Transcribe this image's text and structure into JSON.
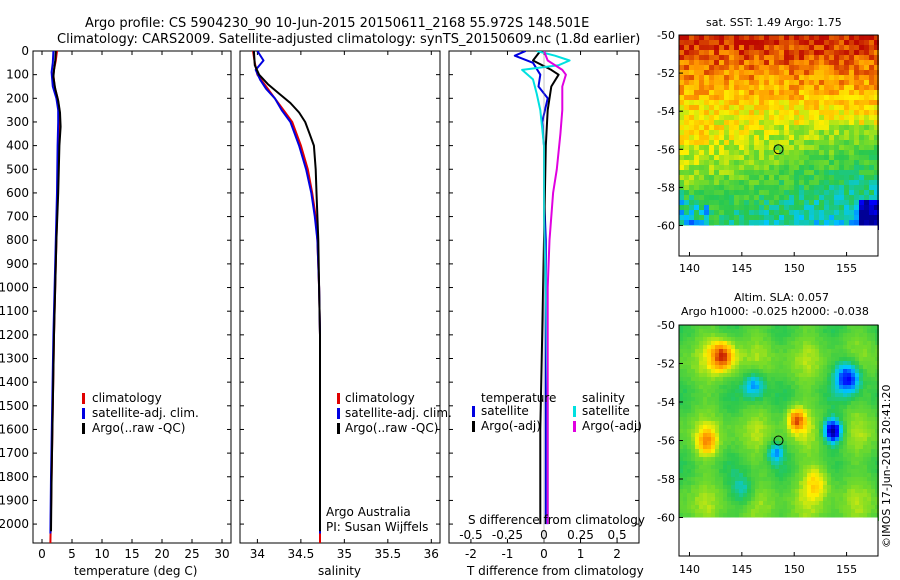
{
  "header": {
    "line1": "Argo profile: CS 5904230_90 10-Jun-2015 20150611_2168 55.972S 148.501E",
    "line2": "Climatology: CARS2009. Satellite-adjusted climatology: synTS_20150609.nc (1.8d earlier)"
  },
  "colors": {
    "climatology": "#e00000",
    "satellite_adj": "#0000e0",
    "argo": "#000000",
    "satellite_s": "#00e0e0",
    "argo_s": "#e000e0"
  },
  "chart_data": [
    {
      "type": "line",
      "name": "temperature",
      "xlabel": "temperature (deg C)",
      "ylabel": "",
      "xlim": [
        -1.5,
        31.5
      ],
      "ylim": [
        2080,
        0
      ],
      "xticks": [
        0,
        5,
        10,
        15,
        20,
        25,
        30
      ],
      "yticks": [
        0,
        100,
        200,
        300,
        400,
        500,
        600,
        700,
        800,
        900,
        1000,
        1100,
        1200,
        1300,
        1400,
        1500,
        1600,
        1700,
        1800,
        1900,
        2000
      ],
      "legend": [
        "climatology",
        "satellite-adj. clim.",
        "Argo(..raw -QC)"
      ],
      "series": [
        {
          "name": "climatology",
          "color": "#e00000",
          "points": [
            [
              2.5,
              0
            ],
            [
              2.3,
              40
            ],
            [
              2.0,
              80
            ],
            [
              1.9,
              100
            ],
            [
              2.1,
              150
            ],
            [
              2.6,
              200
            ],
            [
              2.9,
              250
            ],
            [
              2.9,
              300
            ],
            [
              2.8,
              400
            ],
            [
              2.6,
              600
            ],
            [
              2.4,
              800
            ],
            [
              2.2,
              1000
            ],
            [
              2.0,
              1200
            ],
            [
              1.8,
              1500
            ],
            [
              1.6,
              1800
            ],
            [
              1.4,
              2080
            ]
          ]
        },
        {
          "name": "satellite-adj. clim.",
          "color": "#0000e0",
          "points": [
            [
              1.9,
              0
            ],
            [
              1.8,
              50
            ],
            [
              1.6,
              90
            ],
            [
              1.8,
              150
            ],
            [
              2.4,
              200
            ],
            [
              2.7,
              250
            ],
            [
              2.7,
              300
            ],
            [
              2.6,
              400
            ],
            [
              2.5,
              600
            ],
            [
              2.3,
              800
            ],
            [
              2.1,
              1000
            ],
            [
              1.9,
              1200
            ],
            [
              1.7,
              1500
            ],
            [
              1.5,
              1800
            ],
            [
              1.4,
              2040
            ]
          ]
        },
        {
          "name": "Argo(..raw -QC)",
          "color": "#000000",
          "points": [
            [
              2.3,
              0
            ],
            [
              2.2,
              40
            ],
            [
              2.0,
              80
            ],
            [
              1.9,
              110
            ],
            [
              2.2,
              160
            ],
            [
              2.7,
              210
            ],
            [
              3.0,
              260
            ],
            [
              3.1,
              320
            ],
            [
              2.9,
              400
            ],
            [
              2.7,
              600
            ],
            [
              2.4,
              800
            ],
            [
              2.2,
              1000
            ],
            [
              2.0,
              1200
            ],
            [
              1.8,
              1500
            ],
            [
              1.6,
              1800
            ],
            [
              1.5,
              2030
            ]
          ]
        }
      ]
    },
    {
      "type": "line",
      "name": "salinity",
      "xlabel": "salinity",
      "ylabel": "",
      "xlim": [
        33.8,
        36.1
      ],
      "ylim": [
        2080,
        0
      ],
      "xticks": [
        34,
        34.5,
        35,
        35.5,
        36
      ],
      "legend": [
        "climatology",
        "satellite-adj. clim.",
        "Argo(..raw -QC)"
      ],
      "annotation": [
        "Argo Australia",
        "PI: Susan Wijffels"
      ],
      "series": [
        {
          "name": "climatology",
          "color": "#e00000",
          "points": [
            [
              33.95,
              0
            ],
            [
              33.97,
              50
            ],
            [
              34.0,
              100
            ],
            [
              34.1,
              150
            ],
            [
              34.2,
              200
            ],
            [
              34.3,
              250
            ],
            [
              34.4,
              300
            ],
            [
              34.5,
              400
            ],
            [
              34.58,
              500
            ],
            [
              34.63,
              600
            ],
            [
              34.67,
              700
            ],
            [
              34.69,
              800
            ],
            [
              34.71,
              1000
            ],
            [
              34.72,
              1200
            ],
            [
              34.72,
              1500
            ],
            [
              34.72,
              1800
            ],
            [
              34.72,
              2080
            ]
          ]
        },
        {
          "name": "satellite-adj. clim.",
          "color": "#0000e0",
          "points": [
            [
              34.0,
              0
            ],
            [
              34.07,
              40
            ],
            [
              33.98,
              80
            ],
            [
              34.03,
              120
            ],
            [
              34.1,
              160
            ],
            [
              34.2,
              200
            ],
            [
              34.28,
              250
            ],
            [
              34.38,
              300
            ],
            [
              34.48,
              400
            ],
            [
              34.56,
              500
            ],
            [
              34.62,
              600
            ],
            [
              34.66,
              700
            ],
            [
              34.69,
              800
            ],
            [
              34.71,
              1000
            ],
            [
              34.72,
              1200
            ],
            [
              34.72,
              1500
            ],
            [
              34.72,
              1800
            ],
            [
              34.72,
              2040
            ]
          ]
        },
        {
          "name": "Argo(..raw -QC)",
          "color": "#000000",
          "points": [
            [
              33.96,
              0
            ],
            [
              33.97,
              60
            ],
            [
              34.02,
              100
            ],
            [
              34.12,
              140
            ],
            [
              34.25,
              180
            ],
            [
              34.38,
              220
            ],
            [
              34.48,
              260
            ],
            [
              34.55,
              300
            ],
            [
              34.6,
              350
            ],
            [
              34.65,
              400
            ],
            [
              34.67,
              500
            ],
            [
              34.68,
              600
            ],
            [
              34.69,
              700
            ],
            [
              34.7,
              800
            ],
            [
              34.71,
              1000
            ],
            [
              34.72,
              1200
            ],
            [
              34.72,
              1500
            ],
            [
              34.72,
              1800
            ],
            [
              34.72,
              2030
            ]
          ]
        }
      ]
    },
    {
      "type": "line",
      "name": "differences",
      "xlabel": "T difference from climatology",
      "x2label": "S difference from climatology",
      "xlim": [
        -2.6,
        2.6
      ],
      "ylim": [
        2080,
        0
      ],
      "xticks": [
        -2,
        -1,
        0,
        1,
        2
      ],
      "x2ticks": [
        -0.5,
        -0.25,
        0,
        0.25,
        0.5
      ],
      "legend_groups": [
        {
          "title": "temperature",
          "entries": [
            "satellite",
            "Argo(-adj)"
          ]
        },
        {
          "title": "salinity",
          "entries": [
            "satellite",
            "Argo(-adj)"
          ]
        }
      ],
      "series": [
        {
          "name": "temperature satellite",
          "color": "#0000e0",
          "points": [
            [
              -0.5,
              0
            ],
            [
              -0.8,
              20
            ],
            [
              -0.3,
              50
            ],
            [
              -0.1,
              100
            ],
            [
              -0.15,
              150
            ],
            [
              0.1,
              200
            ],
            [
              -0.05,
              300
            ],
            [
              0.0,
              400
            ],
            [
              0.0,
              600
            ],
            [
              0.05,
              800
            ],
            [
              0.05,
              1000
            ],
            [
              0.05,
              1500
            ],
            [
              0.05,
              2000
            ]
          ]
        },
        {
          "name": "temperature Argo(-adj)",
          "color": "#000000",
          "points": [
            [
              -0.1,
              0
            ],
            [
              -0.3,
              40
            ],
            [
              0.2,
              80
            ],
            [
              0.4,
              100
            ],
            [
              0.2,
              150
            ],
            [
              0.1,
              250
            ],
            [
              0.05,
              400
            ],
            [
              0.0,
              800
            ],
            [
              -0.05,
              1200
            ],
            [
              -0.1,
              1600
            ],
            [
              -0.1,
              2000
            ]
          ]
        },
        {
          "name": "salinity satellite",
          "color": "#00e0e0",
          "points": [
            [
              -0.2,
              0
            ],
            [
              0.3,
              20
            ],
            [
              0.7,
              40
            ],
            [
              0.4,
              60
            ],
            [
              -0.6,
              80
            ],
            [
              -0.3,
              120
            ],
            [
              -0.2,
              180
            ],
            [
              -0.1,
              250
            ],
            [
              0.0,
              400
            ],
            [
              0.0,
              700
            ],
            [
              0.05,
              1000
            ],
            [
              0.1,
              1500
            ],
            [
              0.1,
              2000
            ]
          ]
        },
        {
          "name": "salinity Argo(-adj)",
          "color": "#e000e0",
          "points": [
            [
              0.0,
              0
            ],
            [
              0.1,
              40
            ],
            [
              0.5,
              80
            ],
            [
              0.6,
              100
            ],
            [
              0.5,
              150
            ],
            [
              0.5,
              250
            ],
            [
              0.45,
              350
            ],
            [
              0.35,
              500
            ],
            [
              0.25,
              600
            ],
            [
              0.15,
              800
            ],
            [
              0.1,
              1000
            ],
            [
              0.1,
              1500
            ],
            [
              0.1,
              2000
            ]
          ]
        }
      ]
    },
    {
      "type": "heatmap",
      "name": "sst-map",
      "title": "sat. SST: 1.49 Argo: 1.75",
      "xlim": [
        139,
        158
      ],
      "ylim": [
        -61.6,
        -50
      ],
      "xticks": [
        140,
        145,
        150,
        155
      ],
      "yticks": [
        -50,
        -52,
        -54,
        -56,
        -58,
        -60
      ],
      "marker": {
        "lon": 148.5,
        "lat": -56.0
      }
    },
    {
      "type": "heatmap",
      "name": "sla-map",
      "title": "Altim. SLA: 0.057",
      "subtitle": "Argo h1000: -0.025 h2000: -0.038",
      "xlim": [
        139,
        158
      ],
      "ylim": [
        -62,
        -50
      ],
      "xticks": [
        140,
        145,
        150,
        155
      ],
      "yticks": [
        -50,
        -52,
        -54,
        -56,
        -58,
        -60
      ],
      "marker": {
        "lon": 148.5,
        "lat": -56.0
      }
    }
  ],
  "footer": {
    "credit": "©IMOS 17-Jun-2015 20:41:20"
  }
}
